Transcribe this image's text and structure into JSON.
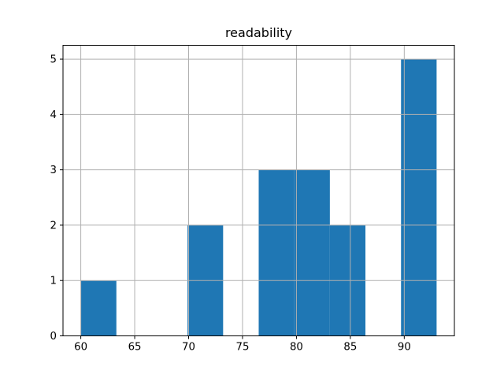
{
  "window": {
    "background": "#ffffff"
  },
  "chart_data": {
    "type": "bar",
    "subtype": "histogram",
    "title": "readability",
    "bin_edges": [
      60,
      63.3,
      66.6,
      69.9,
      73.2,
      76.5,
      79.8,
      83.1,
      86.4,
      89.7,
      93
    ],
    "counts": [
      1,
      0,
      0,
      2,
      0,
      3,
      3,
      2,
      0,
      5
    ],
    "xlabel": "",
    "ylabel": "",
    "xlim": [
      58.35,
      94.65
    ],
    "ylim": [
      0,
      5.25
    ],
    "xticks": [
      60,
      65,
      70,
      75,
      80,
      85,
      90
    ],
    "yticks": [
      0,
      1,
      2,
      3,
      4,
      5
    ],
    "grid": true,
    "grid_above_bars": true,
    "legend": "none",
    "bar_color": "#1f77b4",
    "grid_color": "#b0b0b0",
    "spine_color": "#000000",
    "tick_color": "#000000",
    "title_color": "#000000",
    "plot_background": "#ffffff"
  }
}
